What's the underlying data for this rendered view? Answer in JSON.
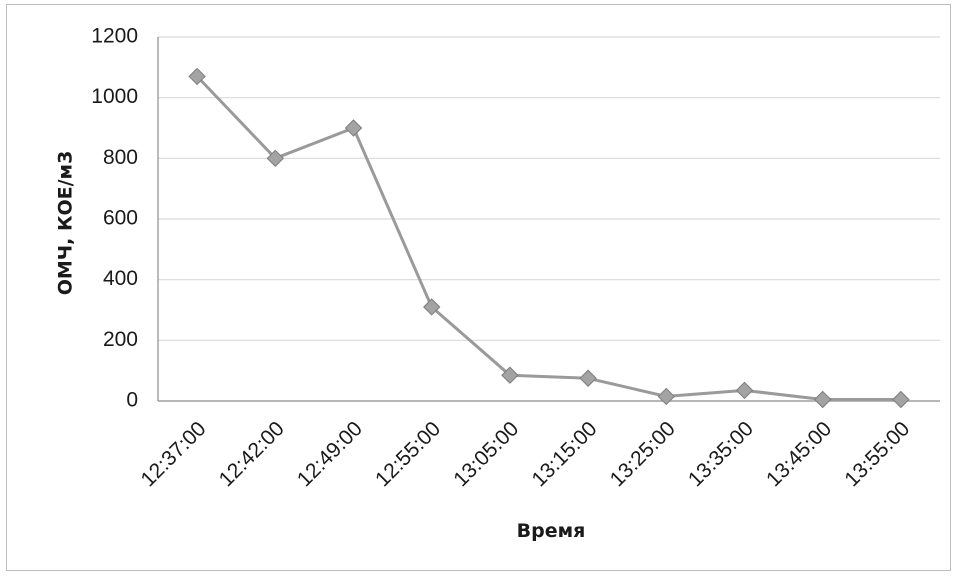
{
  "chart_data": {
    "type": "line",
    "title": "",
    "xlabel": "Время",
    "ylabel": "ОМЧ, КОЕ/м3",
    "categories": [
      "12:37:00",
      "12:42:00",
      "12:49:00",
      "12:55:00",
      "13:05:00",
      "13:15:00",
      "13:25:00",
      "13:35:00",
      "13:45:00",
      "13:55:00"
    ],
    "series": [
      {
        "values": [
          1070,
          800,
          900,
          310,
          85,
          75,
          15,
          35,
          5,
          5
        ]
      }
    ],
    "ylim": [
      0,
      1200
    ],
    "yticks": [
      0,
      200,
      400,
      600,
      800,
      1000,
      1200
    ],
    "grid": true,
    "legend": "none",
    "colors": {
      "line": "#9a9a9a",
      "marker": "#a3a3a3",
      "marker_edge": "#7d7d7d",
      "grid": "#d9d9d9",
      "axis": "#8c8c8c"
    }
  }
}
